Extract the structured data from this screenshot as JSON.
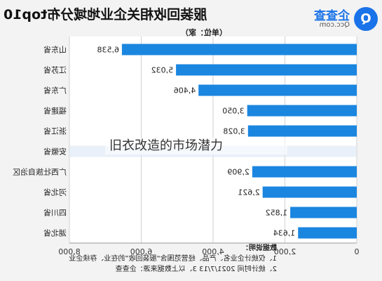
{
  "header": {
    "title": "服装回收相关企业地域分布top10",
    "unit": "（单位：家）"
  },
  "logo": {
    "name": "企查查",
    "url": "Qcc.com",
    "mark": "Q"
  },
  "chart_data": {
    "type": "bar",
    "orientation": "horizontal",
    "categories": [
      "山东省",
      "江苏省",
      "广东省",
      "福建省",
      "浙江省",
      "安徽省",
      "广西壮族自治区",
      "河北省",
      "四川省",
      "湖北省"
    ],
    "values": [
      6538,
      5032,
      4406,
      3050,
      3028,
      null,
      2909,
      2621,
      1852,
      1634
    ],
    "value_labels": [
      "6,538",
      "5,032",
      "4,406",
      "3,050",
      "3,028",
      "",
      "2,909",
      "2,621",
      "1,852",
      "1,634"
    ],
    "xlim": [
      0,
      8000
    ],
    "xticks": [
      0,
      2000,
      4000,
      6000,
      8000
    ],
    "xtick_labels": [
      "0",
      "2,000",
      "4,000",
      "6,000",
      "8,000"
    ],
    "bar_color": "#1a86e0",
    "grid": true
  },
  "overlay": {
    "text": "旧衣改造的市场潜力"
  },
  "notes": {
    "heading": "数据说明：",
    "line1": "1、仅统计企业名、产品、经营范围含“服装回收”的在业、存续企业",
    "line2": "2、统计时间 2021/7/13      3、以上数据来源：企查查"
  }
}
